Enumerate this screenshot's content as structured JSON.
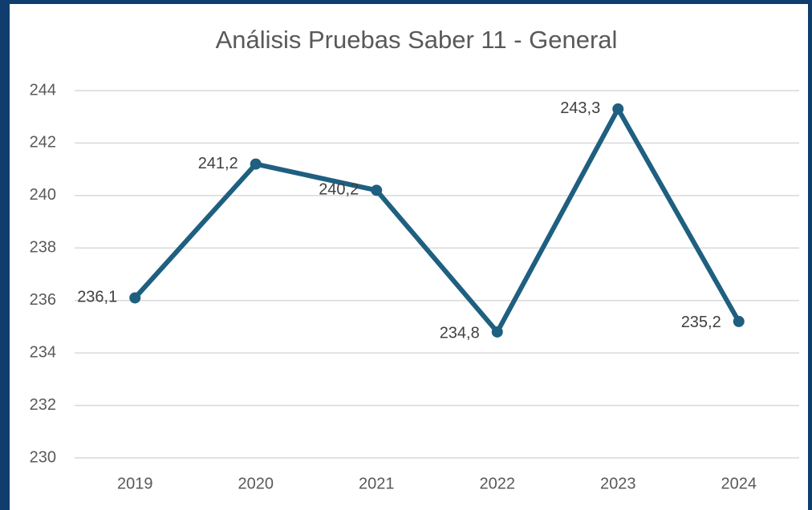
{
  "chart_data": {
    "type": "line",
    "title": "Análisis Pruebas Saber 11 - General",
    "categories": [
      "2019",
      "2020",
      "2021",
      "2022",
      "2023",
      "2024"
    ],
    "series": [
      {
        "name": "General",
        "color": "#1f5f80",
        "values": [
          236.1,
          241.2,
          240.2,
          234.8,
          243.3,
          235.2
        ],
        "value_labels": [
          "236,1",
          "241,2",
          "240,2",
          "234,8",
          "243,3",
          "235,2"
        ]
      }
    ],
    "ylim": [
      230,
      244
    ],
    "yticks": [
      230,
      232,
      234,
      236,
      238,
      240,
      242,
      244
    ],
    "grid": true
  }
}
